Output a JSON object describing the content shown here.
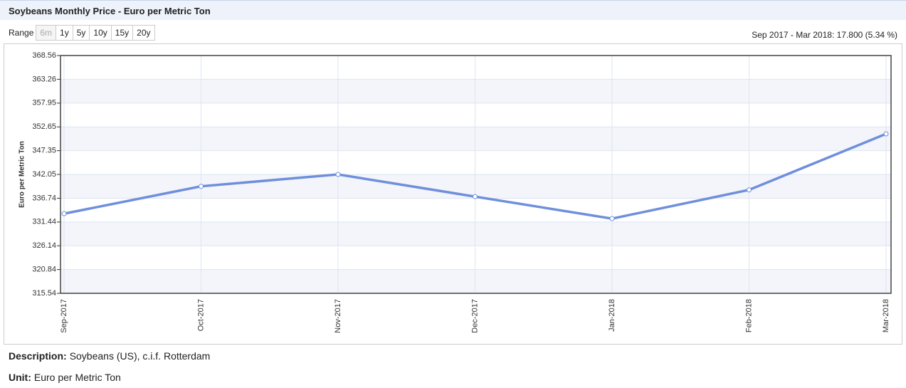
{
  "header": {
    "title": "Soybeans Monthly Price - Euro per Metric Ton"
  },
  "range": {
    "label": "Range",
    "buttons": [
      "6m",
      "1y",
      "5y",
      "10y",
      "15y",
      "20y"
    ],
    "summary": "Sep 2017 - Mar 2018: 17.800 (5.34 %)"
  },
  "chart_data": {
    "type": "line",
    "y_label": "Euro per Metric Ton",
    "categories": [
      "Sep-2017",
      "Oct-2017",
      "Nov-2017",
      "Dec-2017",
      "Jan-2018",
      "Feb-2018",
      "Mar-2018"
    ],
    "series": [
      {
        "name": "Soybeans",
        "color": "#6f8fdc",
        "values": [
          333.3,
          339.4,
          342.05,
          337.1,
          332.2,
          338.6,
          351.1
        ]
      }
    ],
    "ylim": [
      315.54,
      368.56
    ],
    "yticks": [
      315.54,
      320.84,
      326.14,
      331.44,
      336.74,
      342.05,
      347.35,
      352.65,
      357.95,
      363.26,
      368.56
    ],
    "grid": true
  },
  "description": {
    "label": "Description:",
    "text": "Soybeans (US), c.i.f. Rotterdam"
  },
  "unit": {
    "label": "Unit:",
    "text": "Euro per Metric Ton"
  }
}
